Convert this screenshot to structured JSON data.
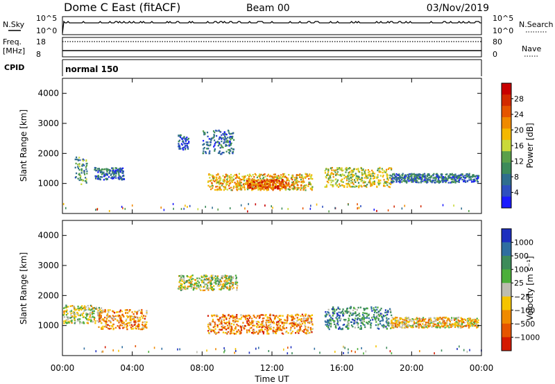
{
  "header": {
    "station": "Dome C East (fitACF)",
    "beam": "Beam 00",
    "date": "03/Nov/2019"
  },
  "aux_panels": {
    "nsky_label": "N.Sky",
    "nsky_ticks": [
      "10^5",
      "10^0"
    ],
    "nsearch_label": "N.Search",
    "nsearch_ticks": [
      "10^5",
      "10^0"
    ],
    "freq_label": "Freq.",
    "freq_unit": "[MHz]",
    "freq_ticks": [
      "18",
      "8"
    ],
    "nave_label": "Nave",
    "nave_ticks": [
      "80",
      "0"
    ],
    "cpid_label": "CPID",
    "cpid_value": "normal 150"
  },
  "chart_data": [
    {
      "type": "heatmap",
      "title": "",
      "xlabel": "",
      "ylabel": "Slant Range [km]",
      "xlim": [
        0,
        24
      ],
      "ylim": [
        0,
        4500
      ],
      "y_ticks": [
        1000,
        2000,
        3000,
        4000
      ],
      "colorbar": {
        "label": "Power [dB]",
        "ticks": [
          "4",
          "8",
          "12",
          "16",
          "20",
          "24",
          "28"
        ],
        "colors": [
          "#1a1aff",
          "#2e4fbf",
          "#2f6e8e",
          "#3d8b5a",
          "#5aa04a",
          "#c9d93a",
          "#f4b800",
          "#f08a00",
          "#e65500",
          "#d32a00",
          "#c80000"
        ]
      },
      "regions": [
        {
          "t0": 0.7,
          "t1": 1.4,
          "r0": 1000,
          "r1": 1900,
          "level": 3
        },
        {
          "t0": 1.8,
          "t1": 3.5,
          "r0": 1150,
          "r1": 1550,
          "level": 2
        },
        {
          "t0": 6.6,
          "t1": 7.2,
          "r0": 2150,
          "r1": 2650,
          "level": 1
        },
        {
          "t0": 8.0,
          "t1": 9.8,
          "r0": 2000,
          "r1": 2800,
          "level": 2
        },
        {
          "t0": 8.3,
          "t1": 14.3,
          "r0": 800,
          "r1": 1350,
          "level": 6
        },
        {
          "t0": 10.5,
          "t1": 12.8,
          "r0": 850,
          "r1": 1150,
          "level": 8
        },
        {
          "t0": 15.0,
          "t1": 18.8,
          "r0": 900,
          "r1": 1550,
          "level": 5
        },
        {
          "t0": 18.8,
          "t1": 23.8,
          "r0": 1050,
          "r1": 1350,
          "level": 2
        }
      ]
    },
    {
      "type": "heatmap",
      "title": "",
      "xlabel": "Time UT",
      "ylabel": "Slant Range [km]",
      "xlim": [
        0,
        24
      ],
      "ylim": [
        0,
        4500
      ],
      "y_ticks": [
        1000,
        2000,
        3000,
        4000
      ],
      "x_ticks": [
        "00:00",
        "04:00",
        "08:00",
        "12:00",
        "16:00",
        "20:00",
        "00:00"
      ],
      "colorbar": {
        "label": "Velocity [m s⁻¹]",
        "ticks": [
          "1000",
          "500",
          "100",
          "25",
          "−25",
          "−100",
          "−500",
          "−1000"
        ],
        "colors": [
          "#1d2fbf",
          "#2f6ea0",
          "#3d8b5a",
          "#4caf3a",
          "#bdbdb0",
          "#f5c400",
          "#f08a00",
          "#e65500",
          "#d41a00"
        ]
      },
      "regions": [
        {
          "t0": 0.0,
          "t1": 2.2,
          "r0": 1100,
          "r1": 1700,
          "level": 4
        },
        {
          "t0": 2.0,
          "t1": 4.8,
          "r0": 900,
          "r1": 1550,
          "level": 6
        },
        {
          "t0": 6.6,
          "t1": 10.0,
          "r0": 2200,
          "r1": 2700,
          "level": 4
        },
        {
          "t0": 8.3,
          "t1": 14.3,
          "r0": 750,
          "r1": 1400,
          "level": 6
        },
        {
          "t0": 15.0,
          "t1": 18.8,
          "r0": 900,
          "r1": 1650,
          "level": 2
        },
        {
          "t0": 18.8,
          "t1": 23.8,
          "r0": 950,
          "r1": 1300,
          "level": 5
        }
      ]
    }
  ]
}
